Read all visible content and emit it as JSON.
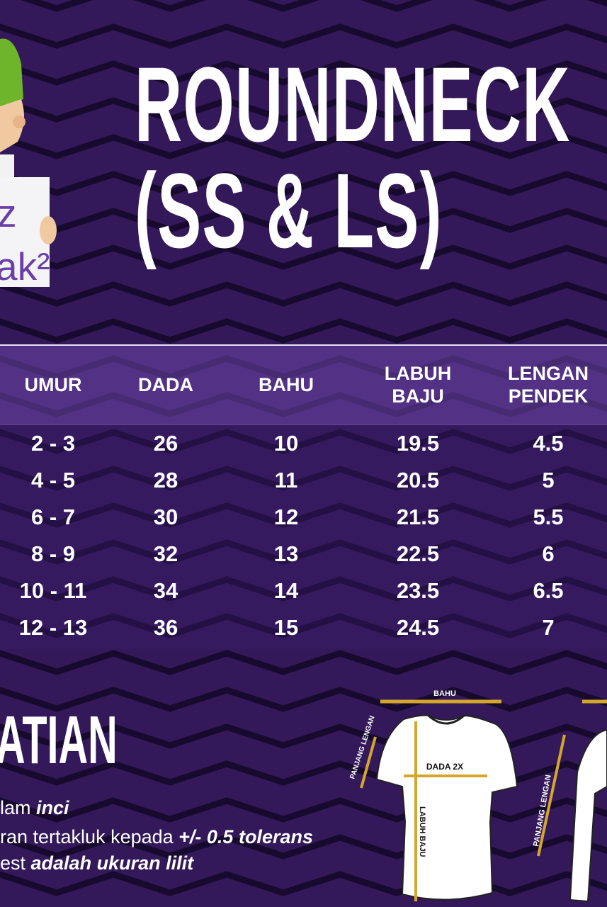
{
  "colors": {
    "background": "#34195a",
    "accent": "#d4a72c",
    "header_band": "#6e46aa"
  },
  "title": {
    "line1": "ROUNDNECK",
    "line2": "(SS & LS)"
  },
  "logo": {
    "text_line1": "z",
    "text_line2": "ak²"
  },
  "table": {
    "headers": [
      "UMUR",
      "DADA",
      "BAHU",
      "LABUH\nBAJU",
      "LENGAN\nPENDEK"
    ],
    "rows": [
      [
        "2 - 3",
        "26",
        "10",
        "19.5",
        "4.5"
      ],
      [
        "4 - 5",
        "28",
        "11",
        "20.5",
        "5"
      ],
      [
        "6 - 7",
        "30",
        "12",
        "21.5",
        "5.5"
      ],
      [
        "8 - 9",
        "32",
        "13",
        "22.5",
        "6"
      ],
      [
        "10 - 11",
        "34",
        "14",
        "23.5",
        "6.5"
      ],
      [
        "12 - 13",
        "36",
        "15",
        "24.5",
        "7"
      ]
    ]
  },
  "notes": {
    "title": "ATIAN",
    "line1_plain": "lam ",
    "line1_bold": "inci",
    "line2_plain": "ran tertakluk kepada ",
    "line2_bold": "+/- 0.5 tolerans",
    "line3_plain": "est ",
    "line3_bold": "adalah ukuran lilit"
  },
  "diagram": {
    "bahu": "BAHU",
    "panjang_lengan_ss": "PANJANG LENGAN",
    "dada": "DADA 2X",
    "labuh_baju": "LABUH BAJU",
    "panjang_lengan_ls": "PANJANG LENGAN"
  }
}
